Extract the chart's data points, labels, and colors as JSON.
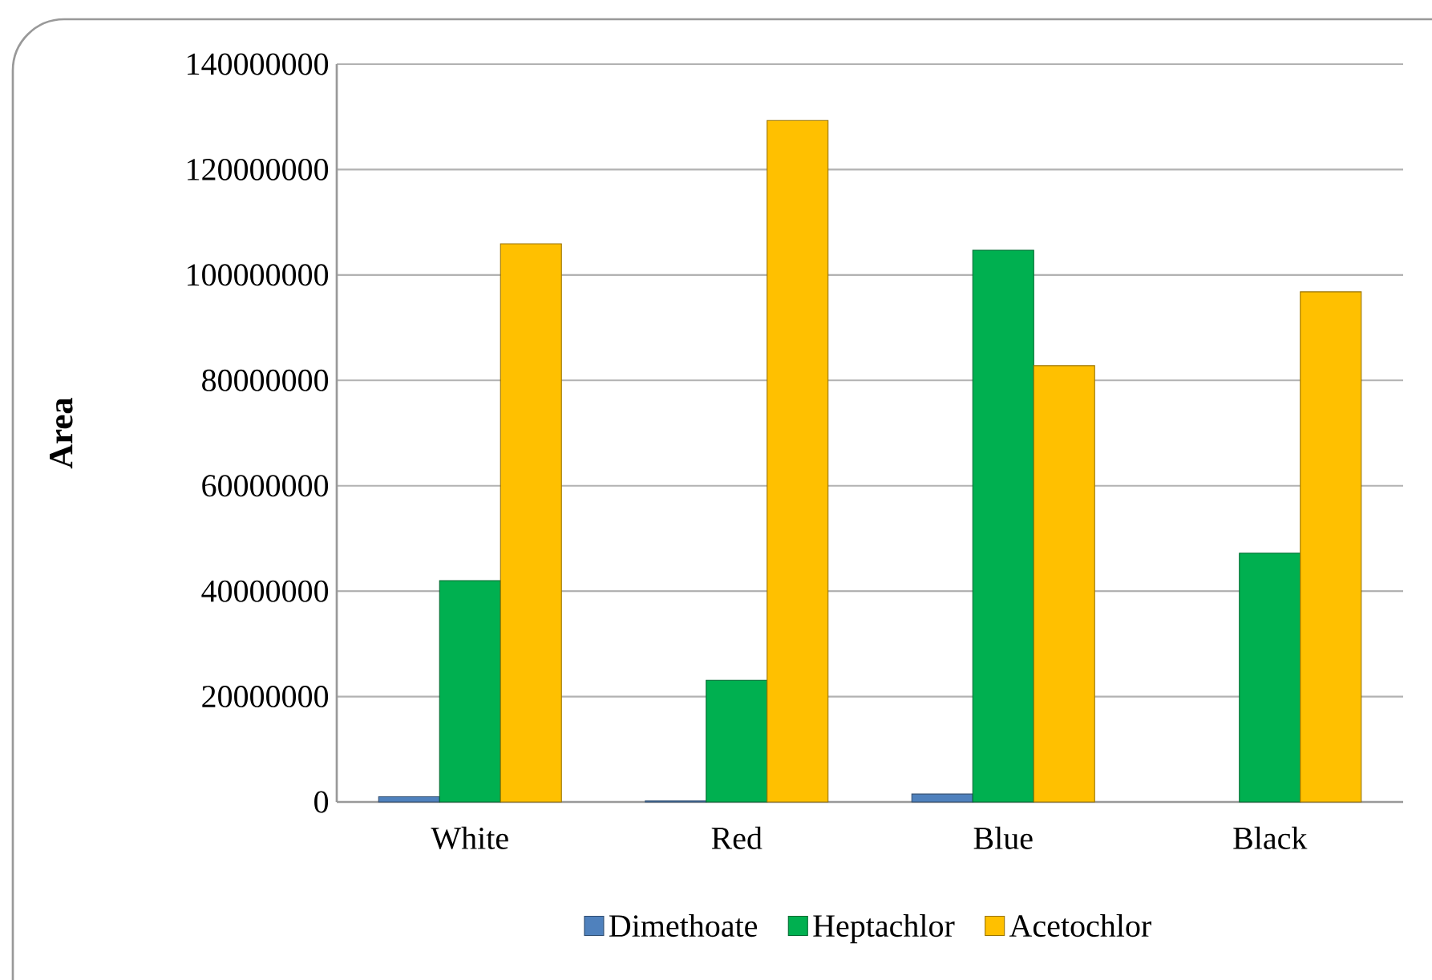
{
  "chart_data": {
    "type": "bar",
    "ylabel": "Area",
    "categories": [
      "White",
      "Red",
      "Blue",
      "Black"
    ],
    "series": [
      {
        "name": "Dimethoate",
        "color": "#4f81bd",
        "values": [
          1000000,
          200000,
          1500000,
          null
        ]
      },
      {
        "name": "Heptachlor",
        "color": "#00b050",
        "values": [
          42000000,
          23100000,
          104700000,
          47200000
        ]
      },
      {
        "name": "Acetochlor",
        "color": "#ffc000",
        "values": [
          105900000,
          129300000,
          82800000,
          96800000
        ]
      }
    ],
    "ylim": [
      0,
      140000000
    ],
    "yticks": [
      0,
      20000000,
      40000000,
      60000000,
      80000000,
      100000000,
      120000000,
      140000000
    ],
    "grid": "y",
    "legend": "bottom"
  }
}
